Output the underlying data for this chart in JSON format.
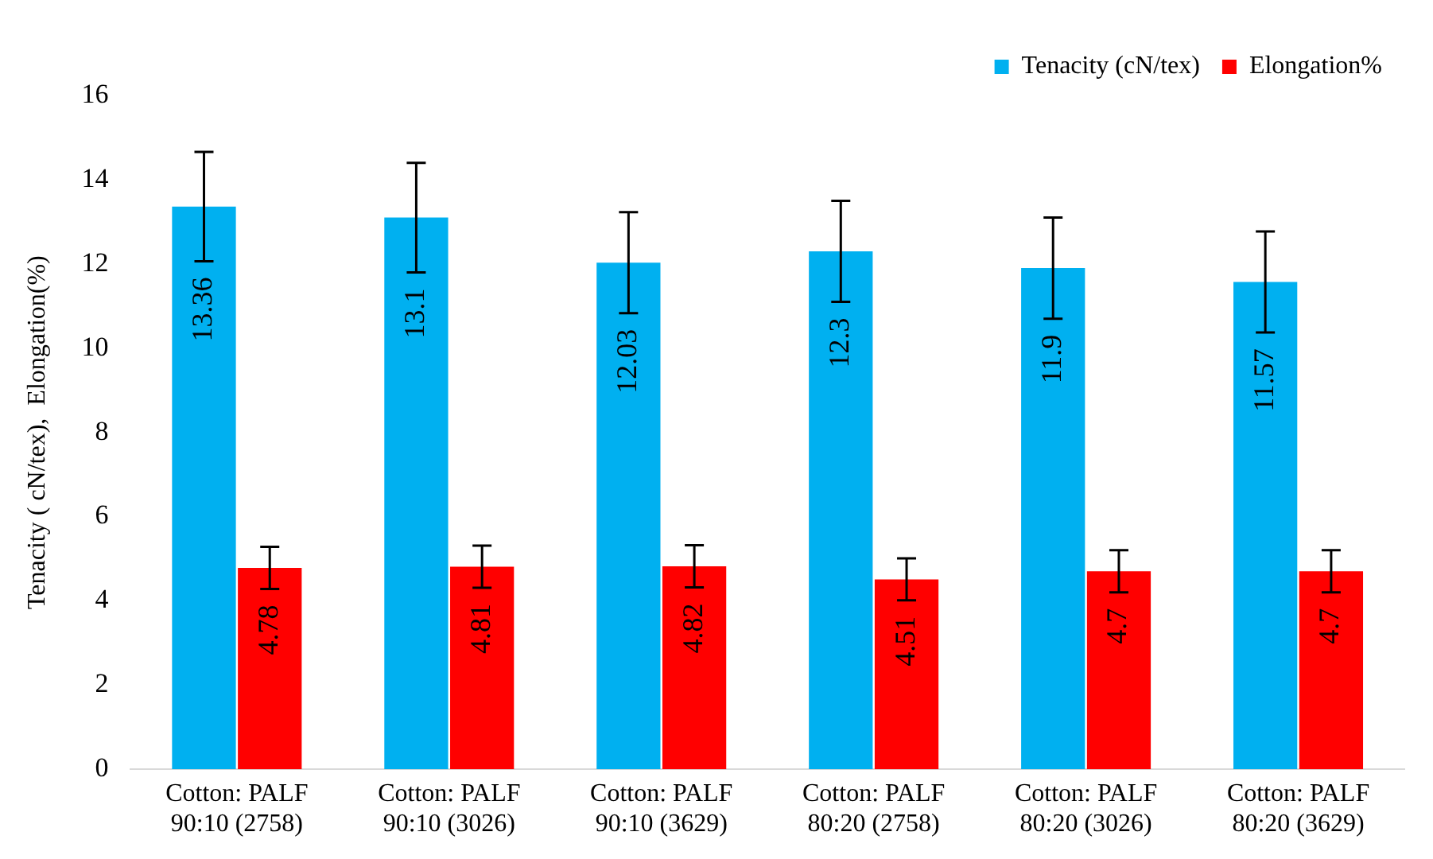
{
  "chart_data": {
    "type": "bar",
    "ylabel": "Tenacity ( cN/tex),  Elongation(%)",
    "categories": [
      "Cotton: PALF\n90:10 (2758)",
      "Cotton: PALF\n90:10 (3026)",
      "Cotton: PALF\n90:10 (3629)",
      "Cotton: PALF\n80:20 (2758)",
      "Cotton: PALF\n80:20 (3026)",
      "Cotton: PALF\n80:20 (3629)"
    ],
    "series": [
      {
        "name": "Tenacity (cN/tex)",
        "color": "#00b0f0",
        "values": [
          13.36,
          13.1,
          12.03,
          12.3,
          11.9,
          11.57
        ],
        "errors": [
          1.3,
          1.3,
          1.2,
          1.2,
          1.2,
          1.2
        ]
      },
      {
        "name": "Elongation%",
        "color": "#ff0000",
        "values": [
          4.78,
          4.81,
          4.82,
          4.51,
          4.7,
          4.7
        ],
        "errors": [
          0.5,
          0.5,
          0.5,
          0.5,
          0.5,
          0.5
        ]
      }
    ],
    "ylim": [
      0,
      16
    ],
    "yticks": [
      0,
      2,
      4,
      6,
      8,
      10,
      12,
      14,
      16
    ],
    "grid": false,
    "legend": "top right",
    "data_labels": true
  }
}
